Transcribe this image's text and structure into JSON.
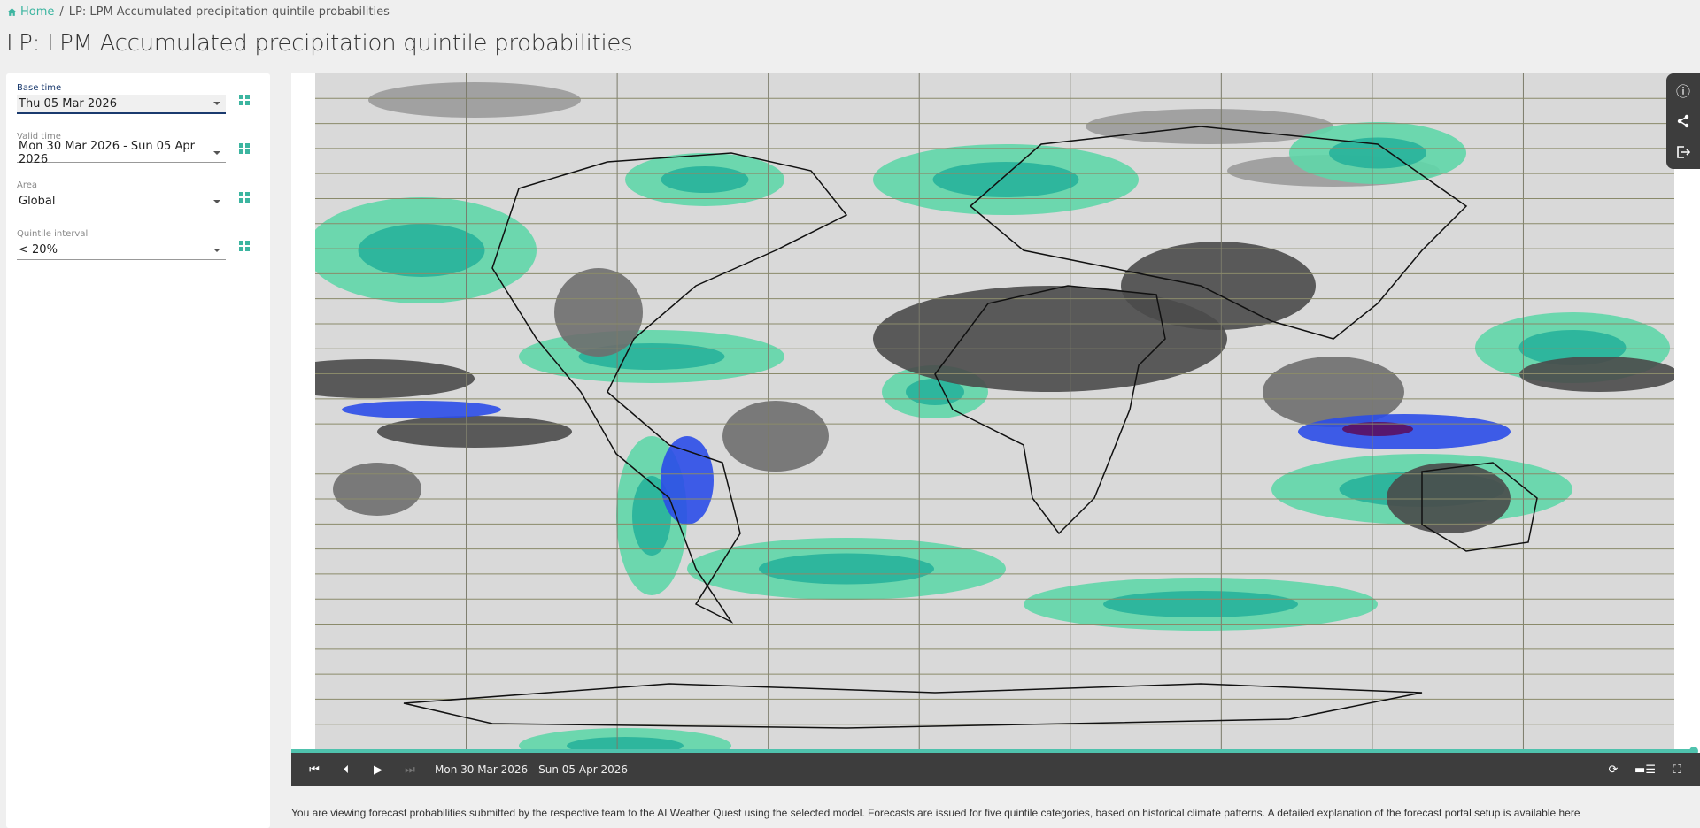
{
  "breadcrumb": {
    "home": "Home",
    "separator": "/",
    "current": "LP: LPM Accumulated precipitation quintile probabilities"
  },
  "page_title": "LP: LPM Accumulated precipitation quintile probabilities",
  "sidebar": {
    "fields": [
      {
        "label": "Base time",
        "value": "Thu 05 Mar 2026"
      },
      {
        "label": "Valid time",
        "value": "Mon 30 Mar 2026 - Sun 05 Apr 2026"
      },
      {
        "label": "Area",
        "value": "Global"
      },
      {
        "label": "Quintile interval",
        "value": "< 20%"
      }
    ]
  },
  "player": {
    "current": "Mon 30 Mar 2026 - Sun 05 Apr 2026",
    "progress": 1.0
  },
  "colors": {
    "accent": "#3cb5a0",
    "toolbar": "#3d3d3d",
    "teal_light": "#5fd6a8",
    "teal_dark": "#1fae98",
    "blue": "#2b4de8",
    "dark": "#333333"
  },
  "description": "You are viewing forecast probabilities submitted by the respective team to the AI Weather Quest using the selected model. Forecasts are issued for five quintile categories, based on historical climate patterns. A detailed explanation of the forecast portal setup is available here"
}
